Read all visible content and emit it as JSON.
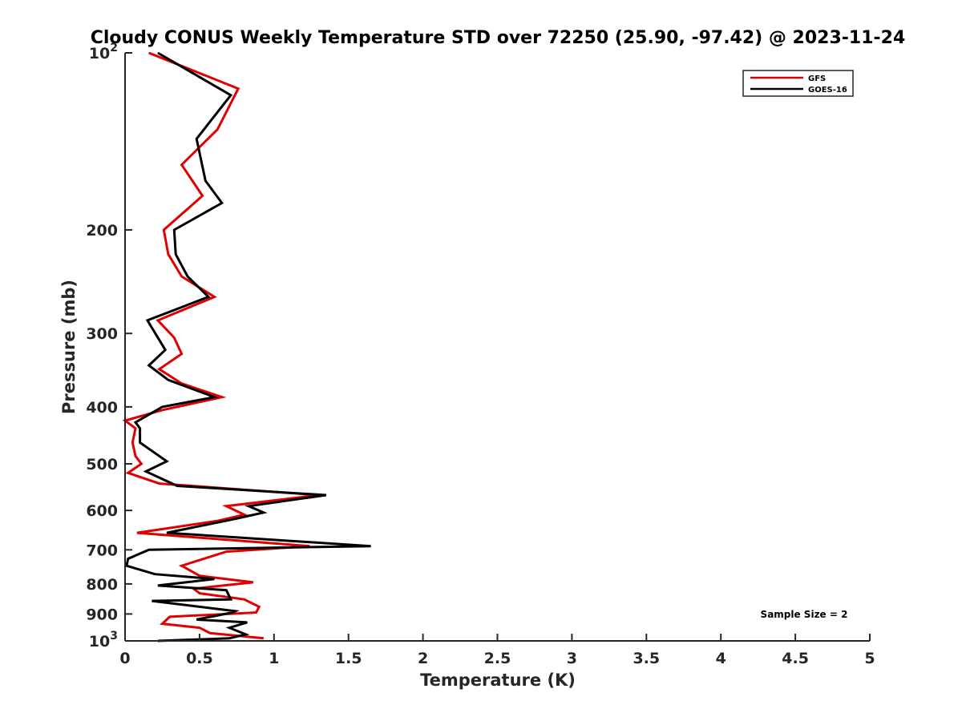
{
  "chart_data": {
    "type": "line",
    "title": "Cloudy CONUS Weekly Temperature STD over 72250 (25.90, -97.42) @ 2023-11-24",
    "xlabel": "Temperature (K)",
    "ylabel": "Pressure (mb)",
    "xlim": [
      0,
      5
    ],
    "ylim": [
      100,
      1000
    ],
    "y_scale": "log",
    "y_reversed": true,
    "x_ticks": [
      "0",
      "0.5",
      "1",
      "1.5",
      "2",
      "2.5",
      "3",
      "3.5",
      "4",
      "4.5",
      "5"
    ],
    "y_ticks": [
      {
        "value": 100,
        "base": "10",
        "exp": "2"
      },
      {
        "value": 200,
        "label": "200"
      },
      {
        "value": 300,
        "label": "300"
      },
      {
        "value": 400,
        "label": "400"
      },
      {
        "value": 500,
        "label": "500"
      },
      {
        "value": 600,
        "label": "600"
      },
      {
        "value": 700,
        "label": "700"
      },
      {
        "value": 800,
        "label": "800"
      },
      {
        "value": 900,
        "label": "900"
      },
      {
        "value": 1000,
        "base": "10",
        "exp": "3"
      }
    ],
    "grid": false,
    "legend_position": "top-right",
    "annotation": "Sample Size = 2",
    "series": [
      {
        "name": "GFS",
        "color": "#e00000",
        "points": [
          [
            0.16,
            100
          ],
          [
            0.76,
            115
          ],
          [
            0.62,
            135
          ],
          [
            0.38,
            155
          ],
          [
            0.52,
            175
          ],
          [
            0.26,
            200
          ],
          [
            0.29,
            220
          ],
          [
            0.38,
            240
          ],
          [
            0.6,
            260
          ],
          [
            0.22,
            285
          ],
          [
            0.33,
            305
          ],
          [
            0.38,
            325
          ],
          [
            0.23,
            345
          ],
          [
            0.38,
            365
          ],
          [
            0.65,
            385
          ],
          [
            0.25,
            405
          ],
          [
            0.0,
            422
          ],
          [
            0.07,
            435
          ],
          [
            0.05,
            460
          ],
          [
            0.07,
            485
          ],
          [
            0.11,
            500
          ],
          [
            0.02,
            518
          ],
          [
            0.23,
            540
          ],
          [
            1.3,
            565
          ],
          [
            0.68,
            590
          ],
          [
            0.8,
            610
          ],
          [
            0.62,
            625
          ],
          [
            0.08,
            655
          ],
          [
            1.24,
            690
          ],
          [
            0.68,
            705
          ],
          [
            0.38,
            745
          ],
          [
            0.5,
            775
          ],
          [
            0.86,
            795
          ],
          [
            0.46,
            815
          ],
          [
            0.5,
            830
          ],
          [
            0.8,
            850
          ],
          [
            0.9,
            875
          ],
          [
            0.88,
            895
          ],
          [
            0.3,
            910
          ],
          [
            0.25,
            935
          ],
          [
            0.5,
            950
          ],
          [
            0.57,
            970
          ],
          [
            0.93,
            990
          ]
        ]
      },
      {
        "name": "GOES-16",
        "color": "#000000",
        "points": [
          [
            0.22,
            100
          ],
          [
            0.71,
            118
          ],
          [
            0.48,
            140
          ],
          [
            0.54,
            165
          ],
          [
            0.65,
            180
          ],
          [
            0.33,
            200
          ],
          [
            0.34,
            220
          ],
          [
            0.42,
            240
          ],
          [
            0.56,
            260
          ],
          [
            0.15,
            285
          ],
          [
            0.27,
            320
          ],
          [
            0.16,
            340
          ],
          [
            0.29,
            360
          ],
          [
            0.6,
            385
          ],
          [
            0.25,
            400
          ],
          [
            0.07,
            425
          ],
          [
            0.1,
            435
          ],
          [
            0.1,
            460
          ],
          [
            0.28,
            495
          ],
          [
            0.14,
            515
          ],
          [
            0.35,
            545
          ],
          [
            1.35,
            565
          ],
          [
            0.83,
            590
          ],
          [
            0.93,
            605
          ],
          [
            0.74,
            620
          ],
          [
            0.28,
            655
          ],
          [
            1.65,
            690
          ],
          [
            0.16,
            700
          ],
          [
            0.02,
            725
          ],
          [
            0.01,
            745
          ],
          [
            0.2,
            770
          ],
          [
            0.6,
            785
          ],
          [
            0.22,
            805
          ],
          [
            0.68,
            820
          ],
          [
            0.71,
            850
          ],
          [
            0.18,
            855
          ],
          [
            0.74,
            890
          ],
          [
            0.72,
            895
          ],
          [
            0.48,
            920
          ],
          [
            0.82,
            930
          ],
          [
            0.7,
            950
          ],
          [
            0.81,
            975
          ],
          [
            0.7,
            990
          ],
          [
            0.22,
            1000
          ]
        ]
      }
    ]
  }
}
